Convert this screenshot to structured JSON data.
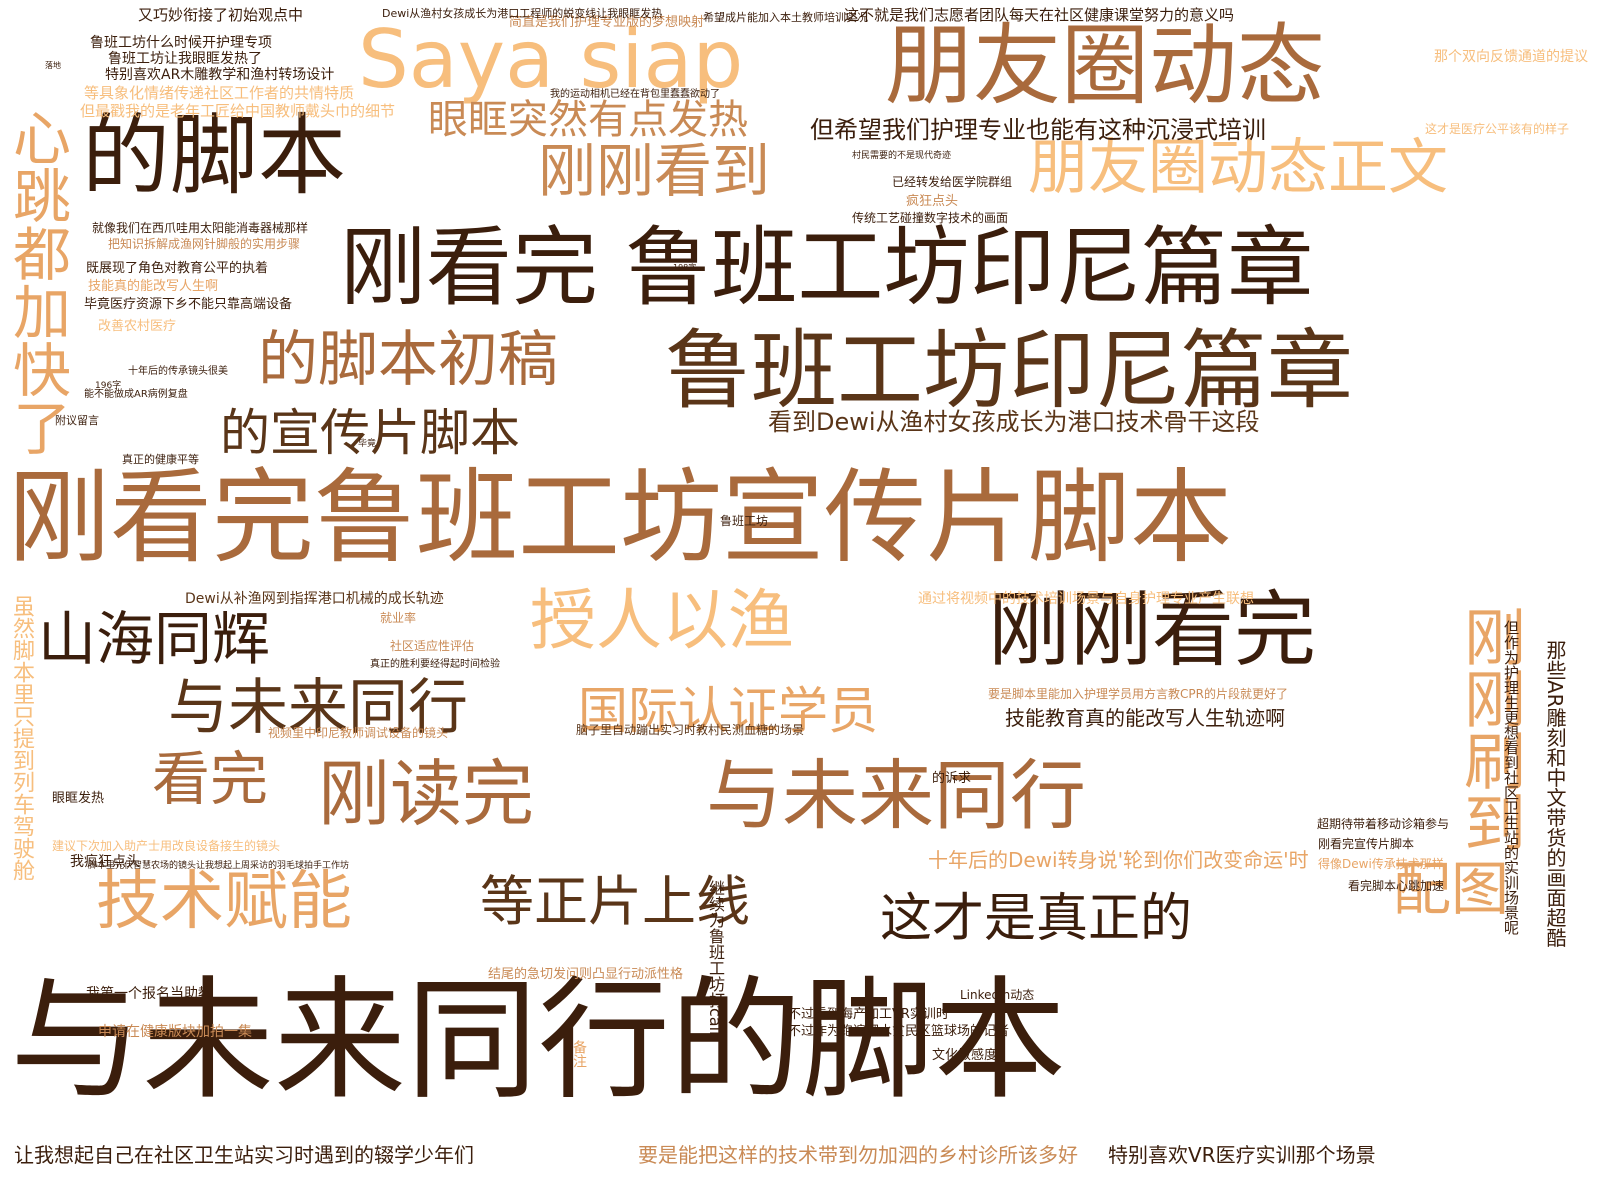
{
  "palette": {
    "darkest": "#3b1e0c",
    "dark": "#5a3518",
    "mid_dark": "#7a4a25",
    "mid": "#a96a3c",
    "mid_light": "#c98a55",
    "light": "#e8a566",
    "lightest": "#f7be7d"
  },
  "words": [
    {
      "text": "刚看完鲁班工坊宣传片脚本",
      "color": "mid"
    },
    {
      "text": "与未来同行的脚本",
      "color": "darkest"
    },
    {
      "text": "刚看完 鲁班工坊印尼篇章",
      "color": "darkest"
    },
    {
      "text": "鲁班工坊印尼篇章",
      "color": "dark"
    },
    {
      "text": "朋友圈动态",
      "color": "mid"
    },
    {
      "text": "Saya siap",
      "color": "lightest"
    },
    {
      "text": "的脚本",
      "color": "darkest"
    },
    {
      "text": "朋友圈动态正文",
      "color": "lightest"
    },
    {
      "text": "刚刚看到",
      "color": "mid_light"
    },
    {
      "text": "眼眶突然有点发热",
      "color": "mid_light"
    },
    {
      "text": "心跳都加快了",
      "color": "light"
    },
    {
      "text": "的脚本初稿",
      "color": "mid"
    },
    {
      "text": "的宣传片脚本",
      "color": "dark"
    },
    {
      "text": "刚刚看完",
      "color": "darkest"
    },
    {
      "text": "授人以渔",
      "color": "lightest"
    },
    {
      "text": "山海同辉",
      "color": "darkest"
    },
    {
      "text": "与未来同行",
      "color": "dark"
    },
    {
      "text": "国际认证学员",
      "color": "light"
    },
    {
      "text": "看完",
      "color": "mid"
    },
    {
      "text": "刚读完",
      "color": "mid"
    },
    {
      "text": "与未来同行",
      "color": "mid"
    },
    {
      "text": "刚刚刷到",
      "color": "light"
    },
    {
      "text": "技术赋能",
      "color": "light"
    },
    {
      "text": "等正片上线",
      "color": "dark"
    },
    {
      "text": "这才是真正的",
      "color": "darkest"
    },
    {
      "text": "配图",
      "color": "light"
    },
    {
      "text": "看到Dewi从渔村女孩成长为港口技术骨干这段",
      "color": "dark"
    },
    {
      "text": "但希望我们护理专业也能有这种沉浸式培训",
      "color": "darkest"
    },
    {
      "text": "技能教育真的能改写人生轨迹啊",
      "color": "darkest"
    },
    {
      "text": "十年后的Dewi转身说'轮到你们改变命运'时",
      "color": "light"
    },
    {
      "text": "让我想起自己在社区卫生站实习时遇到的辍学少年们",
      "color": "darkest"
    },
    {
      "text": "要是能把这样的技术带到勿加泗的乡村诊所该多好",
      "color": "mid_light"
    },
    {
      "text": "特别喜欢VR医疗实训那个场景",
      "color": "darkest"
    },
    {
      "text": "这不就是我们志愿者团队每天在社区健康课堂努力的意义吗",
      "color": "darkest"
    },
    {
      "text": "鲁班工坊什么时候开护理专项",
      "color": "darkest"
    },
    {
      "text": "鲁班工坊让我眼眶发热了",
      "color": "darkest"
    },
    {
      "text": "特别喜欢AR木雕教学和渔村转场设计",
      "color": "darkest"
    },
    {
      "text": "又巧妙衔接了初始观点中",
      "color": "darkest"
    },
    {
      "text": "等具象化情绪传递社区工作者的共情特质",
      "color": "lightest"
    },
    {
      "text": "但最戳我的是老年工匠给中国教师戴头巾的细节",
      "color": "lightest"
    },
    {
      "text": "就像我们在西爪哇用太阳能消毒器械那样",
      "color": "darkest"
    },
    {
      "text": "把知识拆解成渔网针脚般的实用步骤",
      "color": "mid_light"
    },
    {
      "text": "既展现了角色对教育公平的执着",
      "color": "darkest"
    },
    {
      "text": "技能真的能改写人生啊",
      "color": "light"
    },
    {
      "text": "毕竟医疗资源下乡不能只靠高端设备",
      "color": "darkest"
    },
    {
      "text": "改善农村医疗",
      "color": "lightest"
    },
    {
      "text": "Dewi从补渔网到指挥港口机械的成长轨迹",
      "color": "dark"
    },
    {
      "text": "通过将视频中的技术培训场景与自身护理专业产生联想",
      "color": "lightest"
    },
    {
      "text": "脑子里自动蹦出实习时教村民测血糖的场景",
      "color": "dark"
    },
    {
      "text": "视频里中印尼教师调试设备的镜头",
      "color": "mid_light"
    },
    {
      "text": "要是脚本里能加入护理学员用方言教CPR的片段就更好了",
      "color": "mid_light"
    },
    {
      "text": "虽然脚本里只提到列车驾驶舱",
      "color": "lightest"
    },
    {
      "text": "那些AR雕刻和中文带货的画面超酷",
      "color": "darkest"
    },
    {
      "text": "已经转发给医学院群组",
      "color": "darkest"
    },
    {
      "text": "疯狂点头",
      "color": "mid_light"
    },
    {
      "text": "传统工艺碰撞数字技术的画面",
      "color": "darkest"
    },
    {
      "text": "鲁班工坊",
      "color": "darkest"
    },
    {
      "text": "简直是我们护理专业版的梦想映射",
      "color": "mid_light"
    },
    {
      "text": "希望成片能加入本土教师培训实况",
      "color": "darkest"
    },
    {
      "text": "但作为护理生更想看到社区卫生站的实训场景呢",
      "color": "darkest"
    },
    {
      "text": "我疯狂点头",
      "color": "darkest"
    },
    {
      "text": "超期待带着移动诊箱参与",
      "color": "darkest"
    },
    {
      "text": "刚看完宣传片脚本",
      "color": "darkest"
    },
    {
      "text": "得像Dewi传承技术那样",
      "color": "light"
    },
    {
      "text": "看完脚本心跳加速",
      "color": "darkest"
    },
    {
      "text": "继续为鲁班工坊打call",
      "color": "darkest"
    },
    {
      "text": "结尾的急切发问则凸显行动派性格",
      "color": "mid_light"
    },
    {
      "text": "我第一个报名当助教",
      "color": "darkest"
    },
    {
      "text": "申请在健康版块加拍一集",
      "color": "mid_light"
    },
    {
      "text": "眼眶发热",
      "color": "darkest"
    },
    {
      "text": "建议下次加入助产士用改良设备接生的镜头",
      "color": "lightest"
    },
    {
      "text": "脚本里光伏智慧农场的镜头让我想起上周采访的羽毛球拍手工作坊",
      "color": "darkest"
    },
    {
      "text": "能不能做成AR病例复盘",
      "color": "darkest"
    },
    {
      "text": "真正的健康平等",
      "color": "darkest"
    },
    {
      "text": "十年后的传承镜头很美",
      "color": "darkest"
    },
    {
      "text": "不过看到海产加工VR实训时",
      "color": "darkest"
    },
    {
      "text": "不过作为跑遍泗水贫民区篮球场的记者",
      "color": "darkest"
    },
    {
      "text": "文化敏感度",
      "color": "darkest"
    },
    {
      "text": "LinkedIn动态",
      "color": "darkest"
    },
    {
      "text": "备注",
      "color": "light"
    },
    {
      "text": "就业率",
      "color": "mid_light"
    },
    {
      "text": "社区适应性评估",
      "color": "mid_light"
    },
    {
      "text": "真正的胜利要经得起时间检验",
      "color": "darkest"
    },
    {
      "text": "那个双向反馈通道的提议",
      "color": "lightest"
    },
    {
      "text": "这才是医疗公平该有的样子",
      "color": "lightest"
    },
    {
      "text": "我的运动相机已经在背包里蠢蠢欲动了",
      "color": "darkest"
    },
    {
      "text": "村民需要的不是现代奇迹",
      "color": "darkest"
    },
    {
      "text": "的诉求",
      "color": "darkest"
    },
    {
      "text": "附议留言",
      "color": "darkest"
    },
    {
      "text": "毕竟",
      "color": "darkest"
    },
    {
      "text": "196字",
      "color": "darkest"
    },
    {
      "text": "198字",
      "color": "darkest"
    },
    {
      "text": "落地",
      "color": "darkest"
    },
    {
      "text": "Dewi从渔村女孩成长为港口工程师的蜕变线让我眼眶发热",
      "color": "darkest"
    }
  ]
}
